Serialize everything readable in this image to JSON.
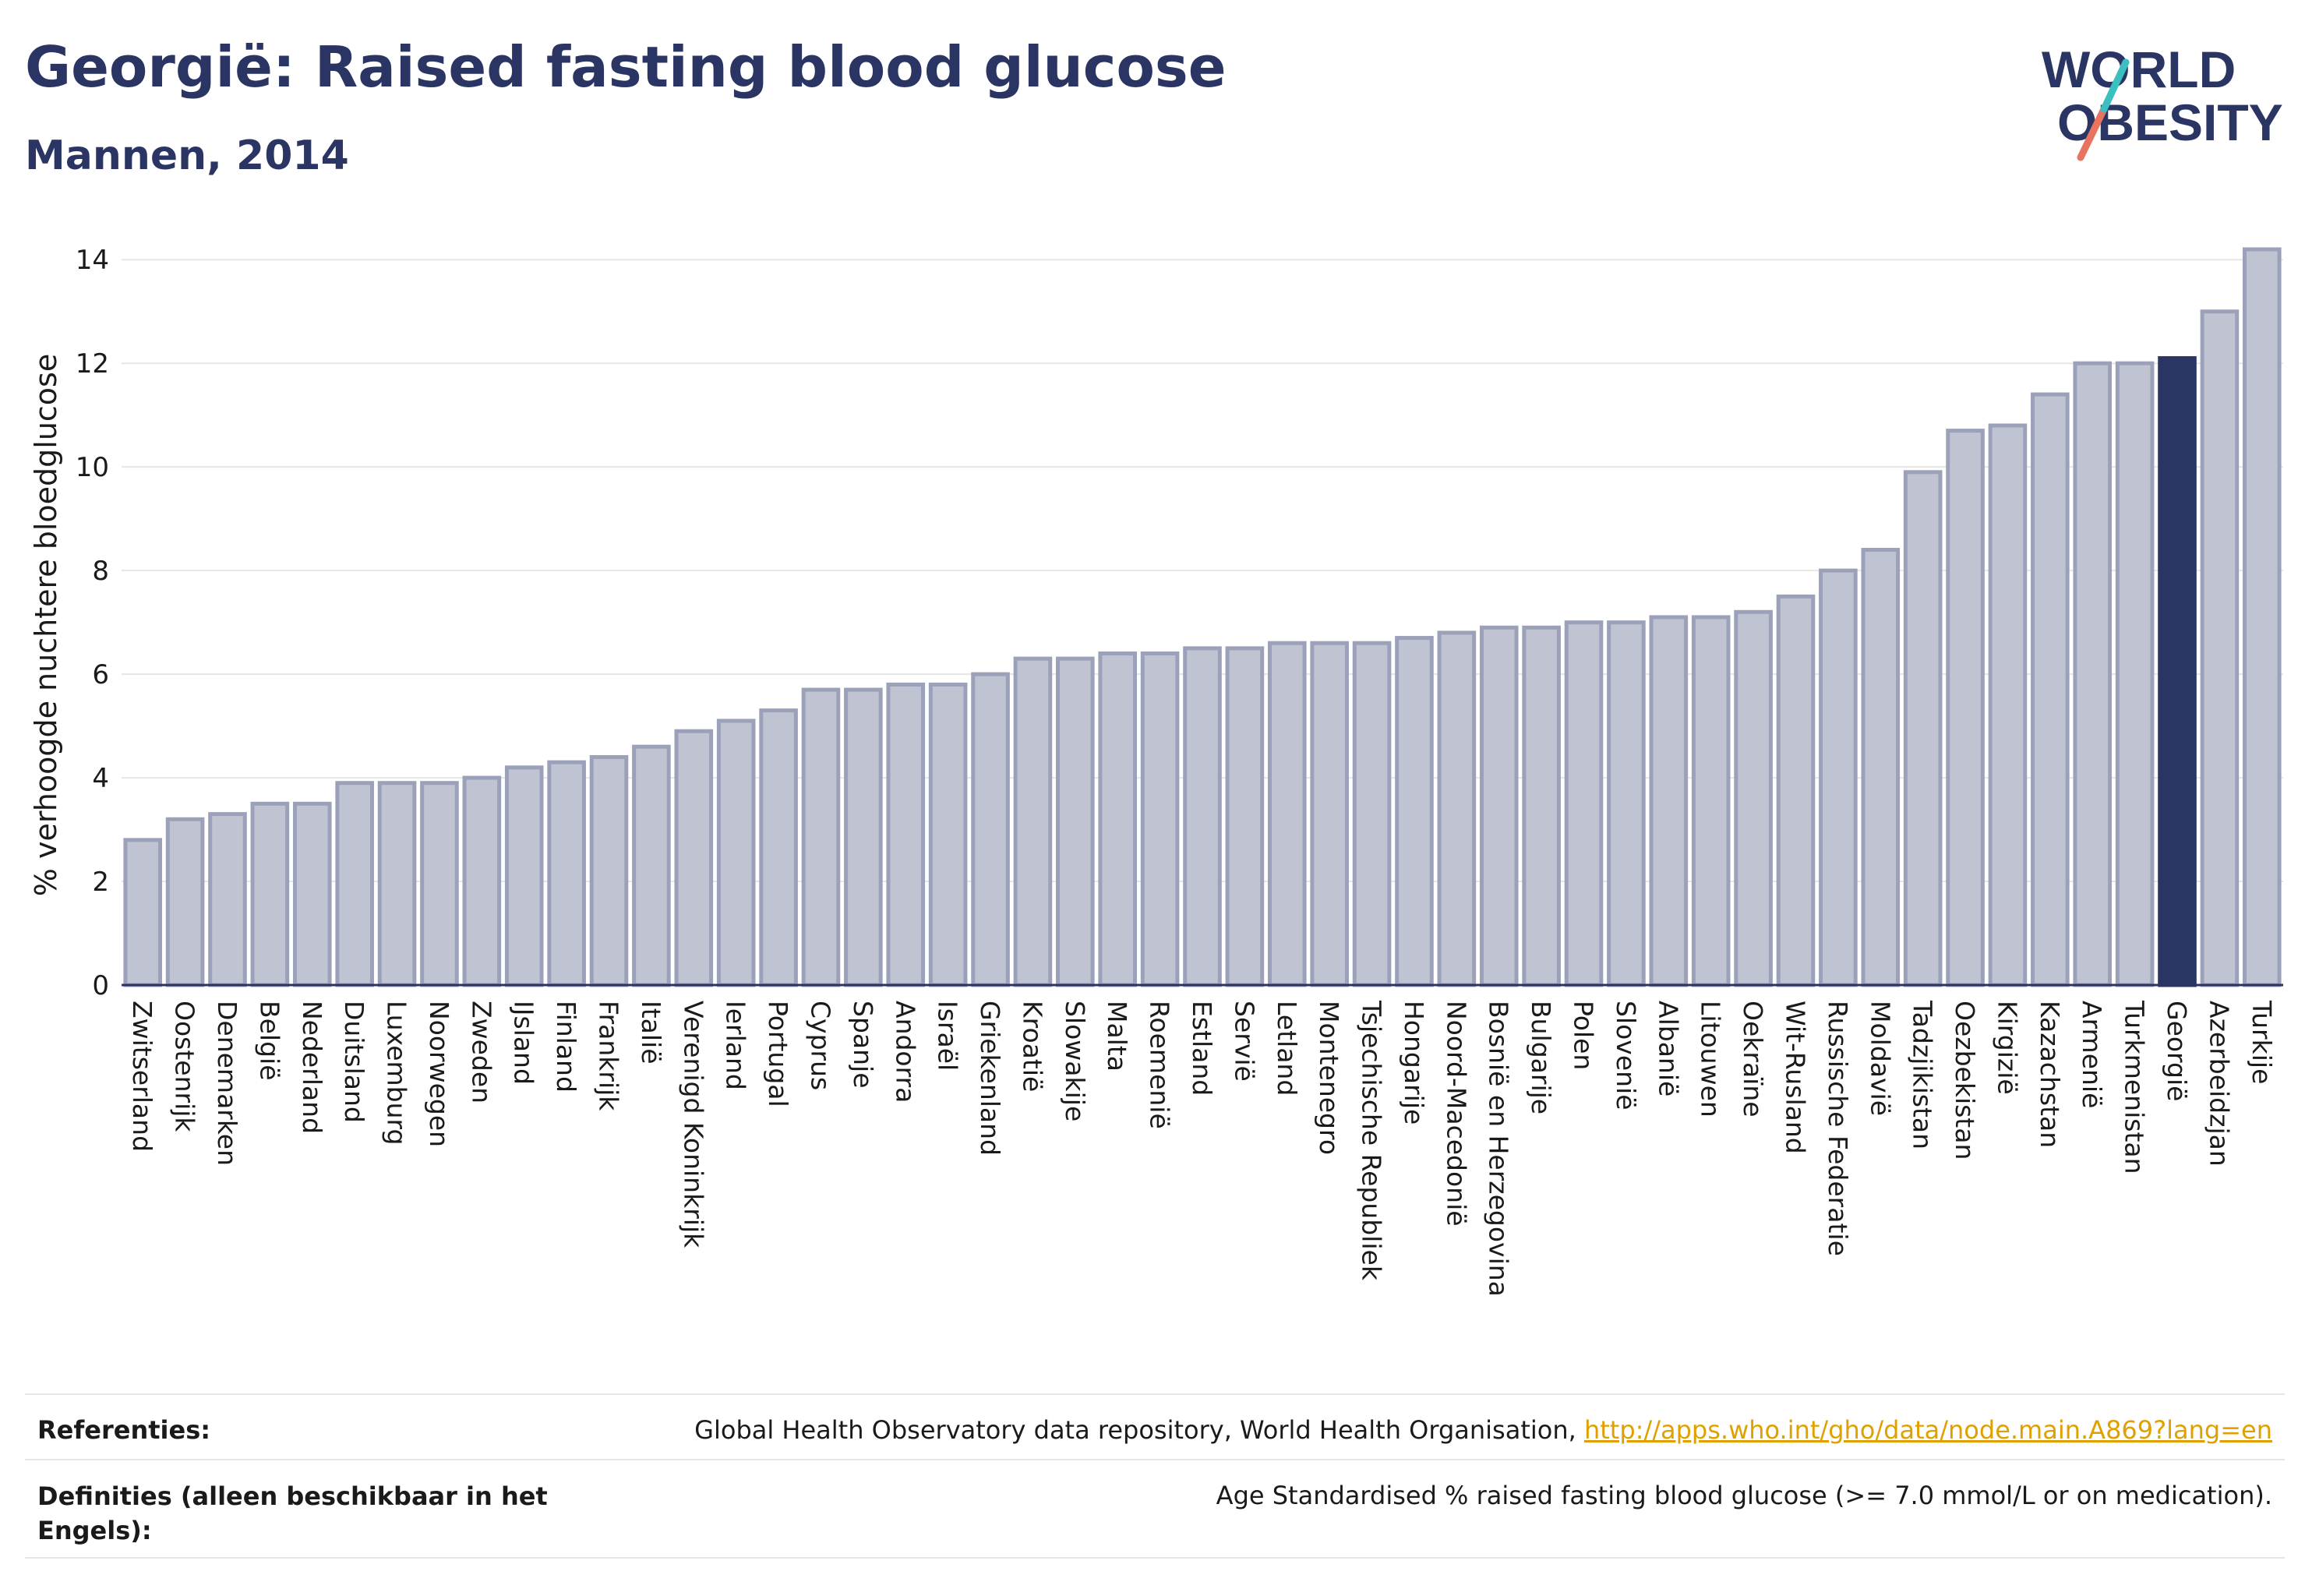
{
  "header": {
    "title": "Georgië: Raised fasting blood glucose",
    "subtitle": "Mannen, 2014"
  },
  "logo": {
    "line1": "WORLD",
    "line2": "OBESITY",
    "name": "world-obesity-logo"
  },
  "colors": {
    "bar": "#bfc3d2",
    "bar_border": "#9ba1b9",
    "highlight": "#2a3563",
    "grid": "#e6e6e6",
    "axis": "#2a3563"
  },
  "chart_data": {
    "type": "bar",
    "ylabel": "% verhoogde nuchtere bloedglucose",
    "ylim": [
      0,
      14.5
    ],
    "yticks": [
      0,
      2,
      4,
      6,
      8,
      10,
      12,
      14
    ],
    "grid": true,
    "highlight": "Georgië",
    "categories": [
      "Zwitserland",
      "Oostenrijk",
      "Denemarken",
      "België",
      "Nederland",
      "Duitsland",
      "Luxemburg",
      "Noorwegen",
      "Zweden",
      "IJsland",
      "Finland",
      "Frankrijk",
      "Italië",
      "Verenigd Koninkrijk",
      "Ierland",
      "Portugal",
      "Cyprus",
      "Spanje",
      "Andorra",
      "Israël",
      "Griekenland",
      "Kroatië",
      "Slowakije",
      "Malta",
      "Roemenië",
      "Estland",
      "Servië",
      "Letland",
      "Montenegro",
      "Tsjechische Republiek",
      "Hongarije",
      "Noord-Macedonië",
      "Bosnië en Herzegovina",
      "Bulgarije",
      "Polen",
      "Slovenië",
      "Albanië",
      "Litouwen",
      "Oekraïne",
      "Wit-Rusland",
      "Russische Federatie",
      "Moldavië",
      "Tadzjikistan",
      "Oezbekistan",
      "Kirgizië",
      "Kazachstan",
      "Armenië",
      "Turkmenistan",
      "Georgië",
      "Azerbeidzjan",
      "Turkije"
    ],
    "values": [
      2.8,
      3.2,
      3.3,
      3.5,
      3.5,
      3.9,
      3.9,
      3.9,
      4.0,
      4.2,
      4.3,
      4.4,
      4.6,
      4.9,
      5.1,
      5.3,
      5.7,
      5.7,
      5.8,
      5.8,
      6.0,
      6.3,
      6.3,
      6.4,
      6.4,
      6.5,
      6.5,
      6.6,
      6.6,
      6.6,
      6.7,
      6.8,
      6.9,
      6.9,
      7.0,
      7.0,
      7.1,
      7.1,
      7.2,
      7.5,
      8.0,
      8.4,
      9.9,
      10.7,
      10.8,
      11.4,
      12.0,
      12.0,
      12.1,
      13.0,
      14.2
    ]
  },
  "references": {
    "ref_label": "Referenties:",
    "ref_text": "Global Health Observatory data repository, World Health Organisation, ",
    "ref_link": "http://apps.who.int/gho/data/node.main.A869?lang=en",
    "def_label_1": "Definities (alleen beschikbaar in het",
    "def_label_2": "Engels):",
    "def_text": "Age Standardised % raised fasting blood glucose (>= 7.0 mmol/L or on medication)."
  }
}
